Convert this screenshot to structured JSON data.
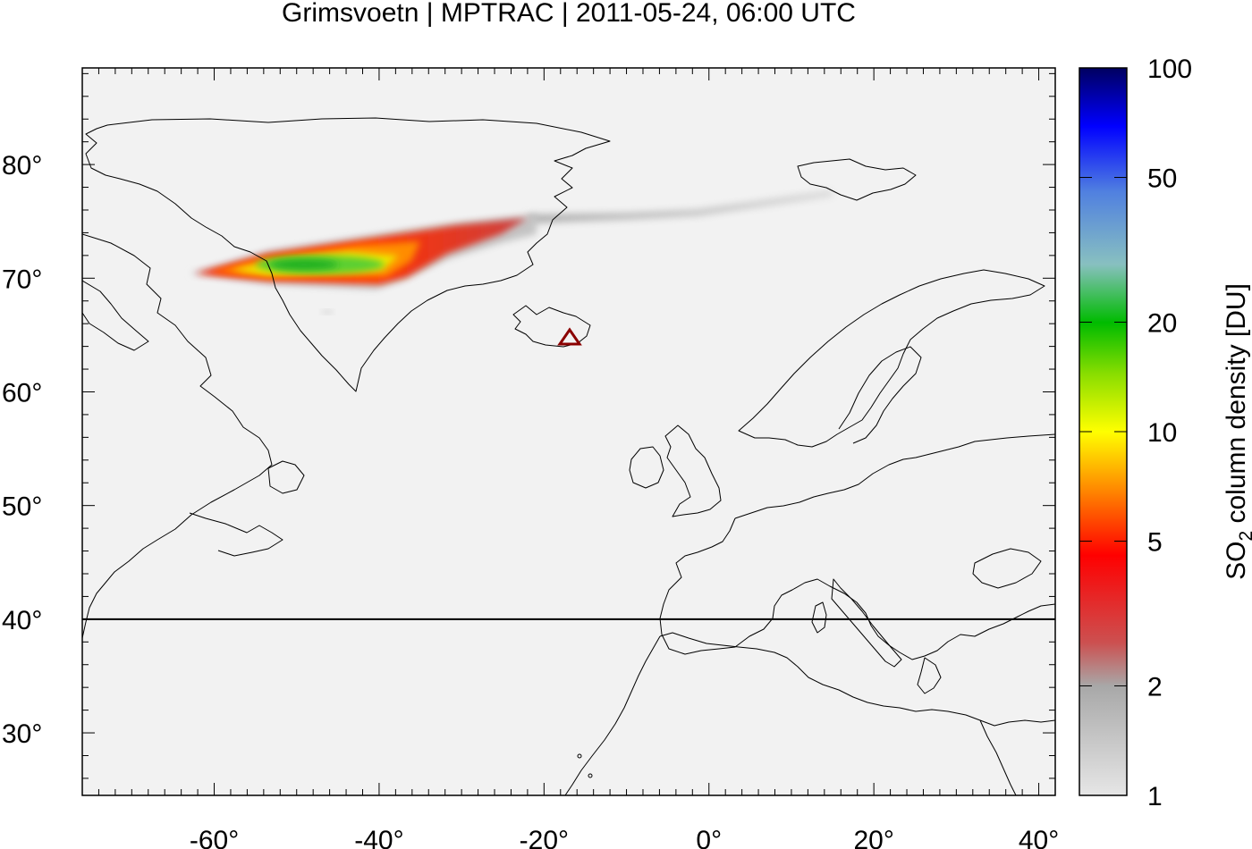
{
  "title": "Grimsvoetn | MPTRAC | 2011-05-24, 06:00 UTC",
  "map": {
    "lon_range": [
      -76,
      42
    ],
    "lat_range": [
      24.5,
      88.5
    ],
    "lon_ticks": [
      -60,
      -40,
      -20,
      0,
      20,
      40
    ],
    "lat_ticks": [
      30,
      40,
      50,
      60,
      70,
      80
    ],
    "lon_tick_labels": [
      "-60°",
      "-40°",
      "-20°",
      "0°",
      "20°",
      "40°"
    ],
    "lat_tick_labels": [
      "30°",
      "40°",
      "50°",
      "60°",
      "70°",
      "80°"
    ],
    "background_color": "#f2f2f2",
    "coastline_color": "#000000",
    "reference_line_lat": 40,
    "volcano": {
      "name_icon": "triangle-volcano-marker",
      "lon": -17.3,
      "lat": 64.4,
      "color": "#8b0000"
    }
  },
  "colorbar": {
    "label_main": "SO",
    "label_sub": "2",
    "label_rest": " column density [DU]",
    "scale": "log",
    "range": [
      1,
      100
    ],
    "ticks": [
      1,
      2,
      5,
      10,
      20,
      50,
      100
    ],
    "tick_labels": [
      "1",
      "2",
      "5",
      "10",
      "20",
      "50",
      "100"
    ],
    "colors": [
      "#e6e6e6",
      "#a8a8a8",
      "#cc5050",
      "#ff0000",
      "#ff8800",
      "#ffff00",
      "#88dd00",
      "#00bb00",
      "#88c0c0",
      "#5080e0",
      "#0000ff",
      "#000060"
    ]
  }
}
